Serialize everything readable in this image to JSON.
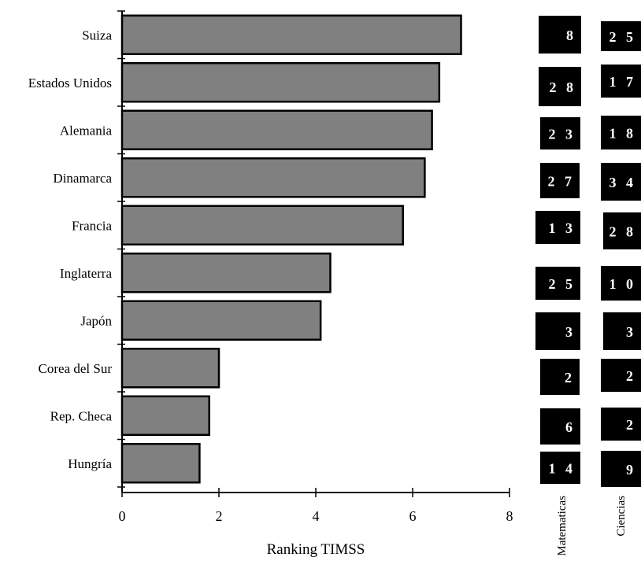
{
  "chart_data": {
    "type": "bar",
    "orientation": "horizontal",
    "categories": [
      "Suiza",
      "Estados Unidos",
      "Alemania",
      "Dinamarca",
      "Francia",
      "Inglaterra",
      "Japón",
      "Corea del Sur",
      "Rep. Checa",
      "Hungría"
    ],
    "values": [
      7.0,
      6.55,
      6.4,
      6.25,
      5.8,
      4.3,
      4.1,
      2.0,
      1.8,
      1.6
    ],
    "xlabel": "Ranking TIMSS",
    "ylabel": "",
    "xlim": [
      0,
      8
    ],
    "xticks": [
      "0",
      "2",
      "4",
      "6",
      "8"
    ],
    "bar_color": "#808080",
    "grid": false,
    "side_columns": [
      {
        "title": "Matematicas",
        "values": [
          "8",
          "2 8",
          "2 3",
          "2 7",
          "1 3",
          "2 5",
          "3",
          "2",
          "6",
          "1 4"
        ]
      },
      {
        "title": "Ciencias",
        "values": [
          "2 5",
          "1 7",
          "1 8",
          "3 4",
          "2 8",
          "1 0",
          "3",
          "2",
          "2",
          "9"
        ]
      }
    ],
    "box_color": "#000000"
  }
}
